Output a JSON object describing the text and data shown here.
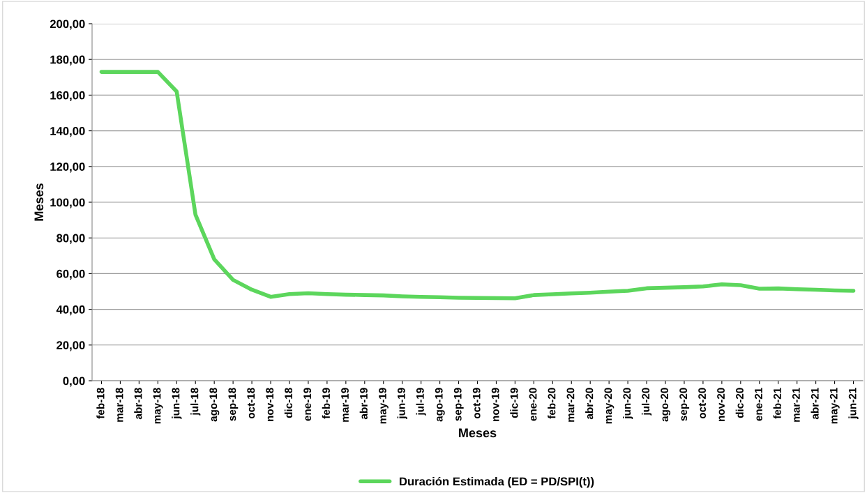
{
  "chart_data": {
    "type": "line",
    "xlabel": "Meses",
    "ylabel": "Meses",
    "categories": [
      "feb-18",
      "mar-18",
      "abr-18",
      "may-18",
      "jun-18",
      "jul-18",
      "ago-18",
      "sep-18",
      "oct-18",
      "nov-18",
      "dic-18",
      "ene-19",
      "feb-19",
      "mar-19",
      "abr-19",
      "may-19",
      "jun-19",
      "jul-19",
      "ago-19",
      "sep-19",
      "oct-19",
      "nov-19",
      "dic-19",
      "ene-20",
      "feb-20",
      "mar-20",
      "abr-20",
      "may-20",
      "jun-20",
      "jul-20",
      "ago-20",
      "sep-20",
      "oct-20",
      "nov-20",
      "dic-20",
      "ene-21",
      "feb-21",
      "mar-21",
      "abr-21",
      "may-21",
      "jun-21"
    ],
    "series": [
      {
        "name": "Duración Estimada (ED = PD/SPI(t))",
        "color": "#5cd65c",
        "values": [
          173,
          173,
          173,
          173,
          162,
          93,
          68,
          56.5,
          51,
          47,
          48.5,
          49,
          48.5,
          48.2,
          48,
          47.8,
          47.3,
          47,
          46.8,
          46.5,
          46.4,
          46.3,
          46.2,
          48,
          48.4,
          48.9,
          49.3,
          49.9,
          50.4,
          51.8,
          52.1,
          52.4,
          52.8,
          54,
          53.5,
          51.6,
          51.7,
          51.3,
          51,
          50.6,
          50.4
        ]
      }
    ],
    "ylim": [
      0,
      200
    ],
    "yticks": [
      {
        "value": 0,
        "label": "0,00"
      },
      {
        "value": 20,
        "label": "20,00"
      },
      {
        "value": 40,
        "label": "40,00"
      },
      {
        "value": 60,
        "label": "60,00"
      },
      {
        "value": 80,
        "label": "80,00"
      },
      {
        "value": 100,
        "label": "100,00"
      },
      {
        "value": 120,
        "label": "120,00"
      },
      {
        "value": 140,
        "label": "140,00"
      },
      {
        "value": 160,
        "label": "160,00"
      },
      {
        "value": 180,
        "label": "180,00"
      },
      {
        "value": 200,
        "label": "200,00"
      }
    ],
    "grid": "y",
    "legend": "bottom",
    "marker": "none",
    "line_style": "solid"
  }
}
